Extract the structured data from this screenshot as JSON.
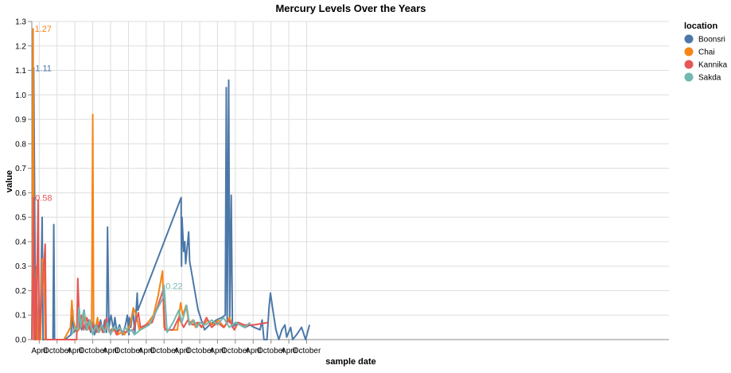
{
  "chart_data": {
    "type": "line",
    "title": "Mercury Levels Over the Years",
    "xlabel": "sample date",
    "ylabel": "value",
    "ylim": [
      0,
      1.3
    ],
    "xlim": [
      "1998-01-15",
      "2015-11-30"
    ],
    "yticks": [
      "0.0",
      "0.1",
      "0.2",
      "0.3",
      "0.4",
      "0.5",
      "0.6",
      "0.7",
      "0.8",
      "0.9",
      "1.0",
      "1.1",
      "1.2",
      "1.3"
    ],
    "xticks": [
      {
        "date": "1998-04-01",
        "label": "April"
      },
      {
        "date": "1998-10-01",
        "label": "October"
      },
      {
        "date": "1999-04-01",
        "label": "April"
      },
      {
        "date": "1999-10-01",
        "label": "October"
      },
      {
        "date": "2000-04-01",
        "label": "April"
      },
      {
        "date": "2000-10-01",
        "label": "October"
      },
      {
        "date": "2001-04-01",
        "label": "April"
      },
      {
        "date": "2001-10-01",
        "label": "October"
      },
      {
        "date": "2002-04-01",
        "label": "April"
      },
      {
        "date": "2002-10-01",
        "label": "October"
      },
      {
        "date": "2003-04-01",
        "label": "April"
      },
      {
        "date": "2003-10-01",
        "label": "October"
      },
      {
        "date": "2004-04-01",
        "label": "April"
      },
      {
        "date": "2004-10-01",
        "label": "October"
      },
      {
        "date": "2005-04-01",
        "label": "April"
      },
      {
        "date": "2005-10-01",
        "label": "October"
      }
    ],
    "grid": true,
    "legend": {
      "title": "location",
      "placement": "top-right"
    },
    "series": [
      {
        "name": "Boonsri",
        "color": "#4c78a8",
        "annotation": "1.11",
        "points": [
          [
            "1998-01-15",
            0
          ],
          [
            "1998-01-24",
            0.6
          ],
          [
            "1998-02-03",
            1.11
          ],
          [
            "1998-02-14",
            0.5
          ],
          [
            "1998-02-24",
            0
          ],
          [
            "1998-03-10",
            0.15
          ],
          [
            "1998-03-20",
            0
          ],
          [
            "1998-04-10",
            0
          ],
          [
            "1998-05-01",
            0.5
          ],
          [
            "1998-05-10",
            0
          ],
          [
            "1998-08-20",
            0
          ],
          [
            "1998-08-28",
            0.47
          ],
          [
            "1998-09-05",
            0
          ],
          [
            "1998-12-20",
            0
          ],
          [
            "1999-02-20",
            0.02
          ],
          [
            "1999-03-10",
            0.12
          ],
          [
            "1999-03-20",
            0.03
          ],
          [
            "1999-05-01",
            0.05
          ],
          [
            "1999-05-20",
            0.1
          ],
          [
            "1999-06-10",
            0.04
          ],
          [
            "1999-07-05",
            0.12
          ],
          [
            "1999-07-25",
            0.04
          ],
          [
            "1999-08-20",
            0.08
          ],
          [
            "1999-09-10",
            0.03
          ],
          [
            "1999-10-01",
            0.07
          ],
          [
            "1999-10-20",
            0.02
          ],
          [
            "1999-11-10",
            0.06
          ],
          [
            "1999-12-01",
            0.03
          ],
          [
            "1999-12-20",
            0.08
          ],
          [
            "2000-01-10",
            0.03
          ],
          [
            "2000-02-01",
            0.08
          ],
          [
            "2000-02-20",
            0.03
          ],
          [
            "2000-03-01",
            0.46
          ],
          [
            "2000-03-15",
            0.05
          ],
          [
            "2000-04-05",
            0.1
          ],
          [
            "2000-05-01",
            0.04
          ],
          [
            "2000-05-15",
            0.09
          ],
          [
            "2000-06-05",
            0.03
          ],
          [
            "2000-07-01",
            0.06
          ],
          [
            "2000-08-01",
            0.02
          ],
          [
            "2000-09-01",
            0.06
          ],
          [
            "2000-09-20",
            0.1
          ],
          [
            "2000-10-05",
            0.02
          ],
          [
            "2000-10-10",
            0.09
          ],
          [
            "2000-10-25",
            0.05
          ],
          [
            "2000-11-15",
            0.12
          ],
          [
            "2000-12-05",
            0.03
          ],
          [
            "2000-12-30",
            0.19
          ],
          [
            "2001-01-05",
            0.12
          ],
          [
            "2002-03-25",
            0.58
          ],
          [
            "2002-03-29",
            0.3
          ],
          [
            "2002-04-03",
            0.5
          ],
          [
            "2002-04-20",
            0.36
          ],
          [
            "2002-05-01",
            0.4
          ],
          [
            "2002-05-10",
            0.31
          ],
          [
            "2002-06-10",
            0.44
          ],
          [
            "2002-06-20",
            0.32
          ],
          [
            "2002-09-15",
            0.12
          ],
          [
            "2002-11-20",
            0.04
          ],
          [
            "2003-01-10",
            0.06
          ],
          [
            "2003-03-20",
            0.08
          ],
          [
            "2003-05-15",
            0.09
          ],
          [
            "2003-06-20",
            0.1
          ],
          [
            "2003-07-01",
            1.03
          ],
          [
            "2003-07-10",
            0.07
          ],
          [
            "2003-07-25",
            1.06
          ],
          [
            "2003-08-05",
            0.07
          ],
          [
            "2003-08-20",
            0.59
          ],
          [
            "2003-09-01",
            0.05
          ],
          [
            "2003-10-20",
            0.07
          ],
          [
            "2004-01-10",
            0.05
          ],
          [
            "2004-03-01",
            0.06
          ],
          [
            "2004-04-10",
            0.05
          ],
          [
            "2004-06-10",
            0.04
          ],
          [
            "2004-07-01",
            0.08
          ],
          [
            "2004-07-20",
            0.0
          ],
          [
            "2004-08-20",
            0.0
          ],
          [
            "2004-09-10",
            0.13
          ],
          [
            "2004-09-25",
            0.19
          ],
          [
            "2004-10-20",
            0.12
          ],
          [
            "2004-11-20",
            0.04
          ],
          [
            "2004-12-20",
            0.0
          ],
          [
            "2005-01-20",
            0.04
          ],
          [
            "2005-02-20",
            0.06
          ],
          [
            "2005-03-10",
            0.01
          ],
          [
            "2005-04-20",
            0.05
          ],
          [
            "2005-05-10",
            0.0
          ],
          [
            "2005-06-20",
            0.02
          ],
          [
            "2005-08-10",
            0.05
          ],
          [
            "2005-09-20",
            0.0
          ],
          [
            "2005-10-30",
            0.06
          ]
        ]
      },
      {
        "name": "Chai",
        "color": "#f58518",
        "annotation": "1.27",
        "points": [
          [
            "1998-01-18",
            0
          ],
          [
            "1998-01-28",
            1.27
          ],
          [
            "1998-02-08",
            0
          ],
          [
            "1998-03-05",
            0.3
          ],
          [
            "1998-03-15",
            0
          ],
          [
            "1998-04-15",
            0
          ],
          [
            "1998-05-01",
            0.33
          ],
          [
            "1998-05-20",
            0.32
          ],
          [
            "1998-06-01",
            0
          ],
          [
            "1998-12-10",
            0
          ],
          [
            "1999-02-15",
            0.05
          ],
          [
            "1999-03-01",
            0.16
          ],
          [
            "1999-03-15",
            0.08
          ],
          [
            "1999-04-20",
            0.03
          ],
          [
            "1999-06-20",
            0.06
          ],
          [
            "1999-07-10",
            0.1
          ],
          [
            "1999-07-25",
            0.06
          ],
          [
            "1999-08-10",
            0.04
          ],
          [
            "1999-09-01",
            0.07
          ],
          [
            "1999-09-20",
            0.04
          ],
          [
            "1999-10-01",
            0.92
          ],
          [
            "1999-10-10",
            0.07
          ],
          [
            "1999-10-25",
            0.04
          ],
          [
            "1999-11-20",
            0.09
          ],
          [
            "1999-12-05",
            0.03
          ],
          [
            "2000-01-01",
            0.05
          ],
          [
            "2000-02-01",
            0.03
          ],
          [
            "2000-03-01",
            0.06
          ],
          [
            "2000-04-01",
            0.03
          ],
          [
            "2000-05-15",
            0.04
          ],
          [
            "2000-06-15",
            0.02
          ],
          [
            "2000-07-20",
            0.03
          ],
          [
            "2000-08-20",
            0.02
          ],
          [
            "2000-10-20",
            0.06
          ],
          [
            "2000-11-20",
            0.13
          ],
          [
            "2000-12-20",
            0.1
          ],
          [
            "2001-01-20",
            0.04
          ],
          [
            "2001-03-01",
            0.05
          ],
          [
            "2001-04-20",
            0.07
          ],
          [
            "2001-06-15",
            0.1
          ],
          [
            "2001-08-01",
            0.18
          ],
          [
            "2001-09-15",
            0.28
          ],
          [
            "2001-10-01",
            0.05
          ],
          [
            "2001-11-01",
            0.04
          ],
          [
            "2002-01-15",
            0.04
          ],
          [
            "2002-02-15",
            0.04
          ],
          [
            "2002-03-20",
            0.15
          ],
          [
            "2002-04-10",
            0.1
          ],
          [
            "2002-05-15",
            0.14
          ],
          [
            "2002-06-15",
            0.06
          ],
          [
            "2002-07-20",
            0.08
          ],
          [
            "2002-08-20",
            0.05
          ],
          [
            "2002-09-20",
            0.07
          ],
          [
            "2002-10-20",
            0.05
          ],
          [
            "2002-12-20",
            0.08
          ],
          [
            "2003-02-10",
            0.06
          ],
          [
            "2003-04-10",
            0.08
          ],
          [
            "2003-06-10",
            0.05
          ],
          [
            "2003-08-01",
            0.09
          ],
          [
            "2003-09-20",
            0.04
          ],
          [
            "2003-11-01",
            0.07
          ],
          [
            "2004-01-01",
            0.05
          ],
          [
            "2004-02-10",
            0.06
          ],
          [
            "2004-03-01",
            0.06
          ],
          [
            "2004-04-15",
            0.06
          ]
        ]
      },
      {
        "name": "Kannika",
        "color": "#e45756",
        "annotation": "0.58",
        "points": [
          [
            "1998-01-20",
            0
          ],
          [
            "1998-02-01",
            0.58
          ],
          [
            "1998-02-10",
            0
          ],
          [
            "1998-02-20",
            0.25
          ],
          [
            "1998-03-01",
            0
          ],
          [
            "1998-03-20",
            0.57
          ],
          [
            "1998-04-01",
            0
          ],
          [
            "1998-06-01",
            0.39
          ],
          [
            "1998-06-10",
            0
          ],
          [
            "1999-04-20",
            0
          ],
          [
            "1999-05-01",
            0.25
          ],
          [
            "1999-05-20",
            0.05
          ],
          [
            "1999-06-10",
            0.1
          ],
          [
            "1999-07-01",
            0.04
          ],
          [
            "1999-08-01",
            0.09
          ],
          [
            "1999-09-01",
            0.04
          ],
          [
            "1999-10-10",
            0.06
          ],
          [
            "1999-11-10",
            0.03
          ],
          [
            "1999-12-10",
            0.07
          ],
          [
            "2000-01-20",
            0.03
          ],
          [
            "2000-02-20",
            0.09
          ],
          [
            "2000-03-20",
            0.03
          ],
          [
            "2000-05-01",
            0.05
          ],
          [
            "2000-06-01",
            0.02
          ],
          [
            "2000-07-01",
            0.04
          ],
          [
            "2000-09-01",
            0.03
          ],
          [
            "2000-11-20",
            0.04
          ],
          [
            "2001-01-10",
            0.11
          ],
          [
            "2001-02-01",
            0.05
          ],
          [
            "2001-06-01",
            0.07
          ],
          [
            "2001-09-20",
            0.2
          ],
          [
            "2001-10-10",
            0.04
          ],
          [
            "2002-01-01",
            0.04
          ],
          [
            "2002-03-01",
            0.09
          ],
          [
            "2002-04-20",
            0.05
          ],
          [
            "2002-06-01",
            0.08
          ],
          [
            "2002-07-20",
            0.06
          ],
          [
            "2002-09-10",
            0.07
          ],
          [
            "2002-10-20",
            0.05
          ],
          [
            "2002-12-10",
            0.09
          ],
          [
            "2003-02-01",
            0.05
          ],
          [
            "2003-04-01",
            0.07
          ],
          [
            "2003-06-01",
            0.05
          ],
          [
            "2003-08-01",
            0.08
          ],
          [
            "2003-09-20",
            0.04
          ],
          [
            "2003-11-01",
            0.07
          ],
          [
            "2004-01-01",
            0.06
          ],
          [
            "2004-04-10",
            0.06
          ],
          [
            "2004-09-01",
            0.07
          ]
        ]
      },
      {
        "name": "Sakda",
        "color": "#72b7b2",
        "annotation": "0.22",
        "points": [
          [
            "1999-03-01",
            0.02
          ],
          [
            "1999-04-01",
            0.05
          ],
          [
            "1999-05-01",
            0.04
          ],
          [
            "1999-05-15",
            0.13
          ],
          [
            "1999-06-01",
            0.05
          ],
          [
            "1999-07-01",
            0.12
          ],
          [
            "1999-08-01",
            0.04
          ],
          [
            "1999-09-01",
            0.08
          ],
          [
            "1999-10-01",
            0.02
          ],
          [
            "1999-11-01",
            0.06
          ],
          [
            "1999-12-01",
            0.03
          ],
          [
            "2000-01-01",
            0.06
          ],
          [
            "2000-02-01",
            0.03
          ],
          [
            "2000-03-01",
            0.07
          ],
          [
            "2000-04-01",
            0.02
          ],
          [
            "2000-05-01",
            0.05
          ],
          [
            "2000-06-01",
            0.04
          ],
          [
            "2000-07-01",
            0.05
          ],
          [
            "2000-08-01",
            0.03
          ],
          [
            "2000-09-01",
            0.05
          ],
          [
            "2000-10-01",
            0.03
          ],
          [
            "2000-11-01",
            0.04
          ],
          [
            "2000-12-01",
            0.02
          ],
          [
            "2001-01-01",
            0.03
          ],
          [
            "2001-02-01",
            0.04
          ],
          [
            "2001-05-01",
            0.06
          ],
          [
            "2001-09-20",
            0.17
          ],
          [
            "2001-10-01",
            0.22
          ],
          [
            "2001-11-01",
            0.03
          ],
          [
            "2002-01-01",
            0.07
          ],
          [
            "2002-03-01",
            0.12
          ],
          [
            "2002-04-01",
            0.07
          ],
          [
            "2002-05-20",
            0.14
          ],
          [
            "2002-06-20",
            0.06
          ],
          [
            "2002-08-01",
            0.08
          ],
          [
            "2002-09-01",
            0.05
          ],
          [
            "2002-10-01",
            0.07
          ],
          [
            "2002-12-01",
            0.06
          ],
          [
            "2003-02-01",
            0.08
          ],
          [
            "2003-04-01",
            0.06
          ],
          [
            "2003-06-01",
            0.09
          ],
          [
            "2003-08-01",
            0.05
          ],
          [
            "2003-10-01",
            0.07
          ],
          [
            "2004-01-01",
            0.05
          ],
          [
            "2004-03-01",
            0.07
          ]
        ]
      }
    ]
  }
}
